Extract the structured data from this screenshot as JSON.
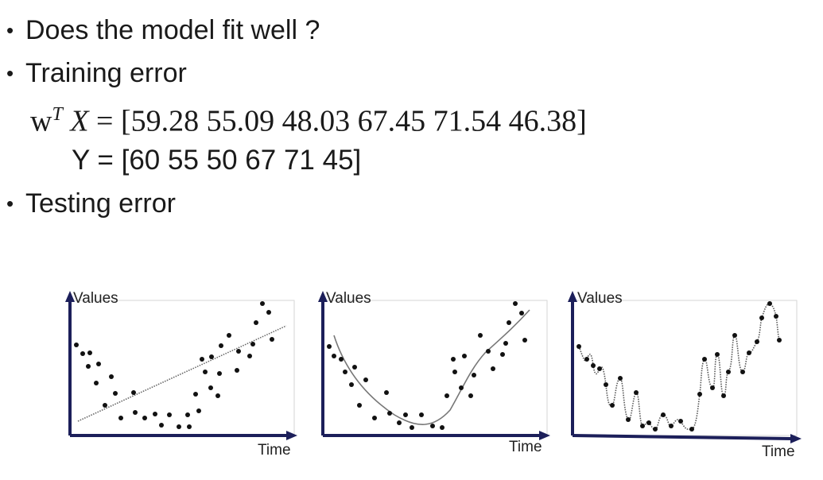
{
  "bullets": {
    "b1": "Does the model fit well ?",
    "b2": "Training error",
    "b3": "Testing error",
    "marker": "•"
  },
  "equation": {
    "w": "w",
    "sup": "T",
    "x": "X",
    "eq": " = ",
    "values": "[59.28 55.09 48.03 67.45 71.54 46.38]"
  },
  "y_equation": "Y = [60 55 50 67 71 45]",
  "plots": [
    {
      "ylabel": "Values",
      "xlabel": "Time"
    },
    {
      "ylabel": "Values",
      "xlabel": "Time"
    },
    {
      "ylabel": "Values",
      "xlabel": "Time"
    }
  ],
  "colors": {
    "axis": "#1c1f5a",
    "points": "#111111",
    "curve": "#666666",
    "grid_box": "#cfcfcf"
  }
}
